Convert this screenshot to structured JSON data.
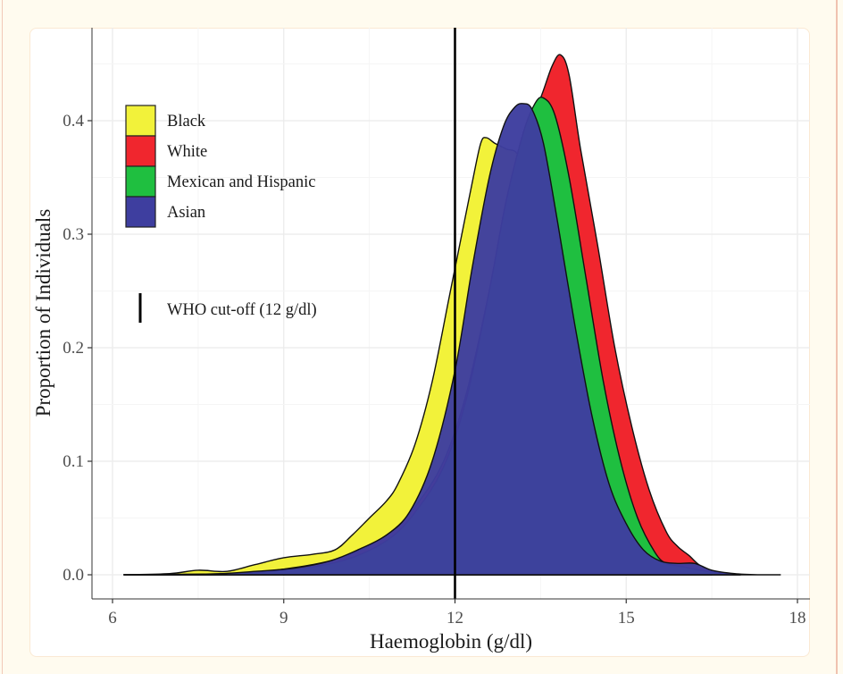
{
  "chart_data": {
    "type": "area",
    "subtype": "density",
    "title": "",
    "xlabel": "Haemoglobin (g/dl)",
    "ylabel": "Proportion of Individuals",
    "xlim": [
      5.7,
      18.2
    ],
    "ylim": [
      -0.02,
      0.5
    ],
    "x_ticks": [
      6,
      9,
      12,
      15,
      18
    ],
    "x_tick_labels": [
      "6",
      "9",
      "12",
      "15",
      "18"
    ],
    "y_ticks": [
      0.0,
      0.1,
      0.2,
      0.3,
      0.4
    ],
    "y_tick_labels": [
      "0.0",
      "0.1",
      "0.2",
      "0.3",
      "0.4"
    ],
    "grid": true,
    "legend_position": "top-left",
    "reference_line": {
      "x": 12,
      "label": "WHO cut-off (12 g/dl)"
    },
    "series": [
      {
        "name": "Black",
        "color": "#f2f23a",
        "points": [
          [
            6.2,
            0.0
          ],
          [
            7.0,
            0.001
          ],
          [
            7.5,
            0.004
          ],
          [
            8.0,
            0.003
          ],
          [
            8.5,
            0.009
          ],
          [
            9.0,
            0.015
          ],
          [
            9.5,
            0.018
          ],
          [
            9.9,
            0.022
          ],
          [
            10.2,
            0.035
          ],
          [
            10.5,
            0.05
          ],
          [
            10.8,
            0.065
          ],
          [
            11.0,
            0.08
          ],
          [
            11.3,
            0.115
          ],
          [
            11.6,
            0.17
          ],
          [
            11.9,
            0.245
          ],
          [
            12.1,
            0.295
          ],
          [
            12.3,
            0.345
          ],
          [
            12.45,
            0.38
          ],
          [
            12.55,
            0.385
          ],
          [
            12.7,
            0.38
          ],
          [
            12.9,
            0.375
          ],
          [
            13.1,
            0.37
          ],
          [
            13.3,
            0.34
          ],
          [
            13.6,
            0.28
          ],
          [
            13.9,
            0.2
          ],
          [
            14.2,
            0.12
          ],
          [
            14.5,
            0.07
          ],
          [
            14.8,
            0.035
          ],
          [
            15.2,
            0.015
          ],
          [
            15.6,
            0.005
          ],
          [
            16.0,
            0.001
          ],
          [
            16.5,
            0.0
          ]
        ]
      },
      {
        "name": "White",
        "color": "#f0262e",
        "points": [
          [
            6.2,
            0.0
          ],
          [
            8.0,
            0.001
          ],
          [
            9.0,
            0.005
          ],
          [
            10.0,
            0.015
          ],
          [
            10.8,
            0.035
          ],
          [
            11.3,
            0.06
          ],
          [
            11.8,
            0.1
          ],
          [
            12.2,
            0.16
          ],
          [
            12.6,
            0.25
          ],
          [
            12.9,
            0.33
          ],
          [
            13.2,
            0.385
          ],
          [
            13.5,
            0.42
          ],
          [
            13.7,
            0.448
          ],
          [
            13.85,
            0.458
          ],
          [
            14.0,
            0.44
          ],
          [
            14.2,
            0.375
          ],
          [
            14.5,
            0.29
          ],
          [
            14.8,
            0.2
          ],
          [
            15.1,
            0.13
          ],
          [
            15.4,
            0.075
          ],
          [
            15.7,
            0.038
          ],
          [
            15.9,
            0.025
          ],
          [
            16.1,
            0.017
          ],
          [
            16.3,
            0.008
          ],
          [
            16.6,
            0.002
          ],
          [
            17.0,
            0.0
          ]
        ]
      },
      {
        "name": "Mexican and Hispanic",
        "color": "#1fbf40",
        "points": [
          [
            6.2,
            0.0
          ],
          [
            8.0,
            0.001
          ],
          [
            9.0,
            0.004
          ],
          [
            10.0,
            0.012
          ],
          [
            10.8,
            0.03
          ],
          [
            11.3,
            0.055
          ],
          [
            11.8,
            0.095
          ],
          [
            12.2,
            0.155
          ],
          [
            12.6,
            0.25
          ],
          [
            12.9,
            0.33
          ],
          [
            13.2,
            0.39
          ],
          [
            13.4,
            0.415
          ],
          [
            13.55,
            0.42
          ],
          [
            13.75,
            0.405
          ],
          [
            14.0,
            0.35
          ],
          [
            14.3,
            0.26
          ],
          [
            14.6,
            0.17
          ],
          [
            14.9,
            0.1
          ],
          [
            15.2,
            0.05
          ],
          [
            15.5,
            0.02
          ],
          [
            15.7,
            0.01
          ],
          [
            16.0,
            0.007
          ],
          [
            16.3,
            0.004
          ],
          [
            16.7,
            0.001
          ],
          [
            17.0,
            0.0
          ]
        ]
      },
      {
        "name": "Asian",
        "color": "#3e3e9f",
        "points": [
          [
            6.2,
            0.0
          ],
          [
            7.5,
            0.0
          ],
          [
            8.5,
            0.003
          ],
          [
            9.2,
            0.006
          ],
          [
            9.8,
            0.012
          ],
          [
            10.3,
            0.022
          ],
          [
            10.8,
            0.035
          ],
          [
            11.2,
            0.055
          ],
          [
            11.6,
            0.1
          ],
          [
            12.0,
            0.18
          ],
          [
            12.3,
            0.27
          ],
          [
            12.6,
            0.35
          ],
          [
            12.85,
            0.395
          ],
          [
            13.05,
            0.412
          ],
          [
            13.2,
            0.415
          ],
          [
            13.35,
            0.41
          ],
          [
            13.55,
            0.38
          ],
          [
            13.8,
            0.31
          ],
          [
            14.1,
            0.22
          ],
          [
            14.4,
            0.14
          ],
          [
            14.7,
            0.08
          ],
          [
            15.0,
            0.045
          ],
          [
            15.3,
            0.022
          ],
          [
            15.6,
            0.012
          ],
          [
            15.9,
            0.01
          ],
          [
            16.2,
            0.01
          ],
          [
            16.5,
            0.004
          ],
          [
            16.9,
            0.001
          ],
          [
            17.3,
            0.0
          ],
          [
            17.7,
            0.0
          ]
        ]
      }
    ]
  }
}
